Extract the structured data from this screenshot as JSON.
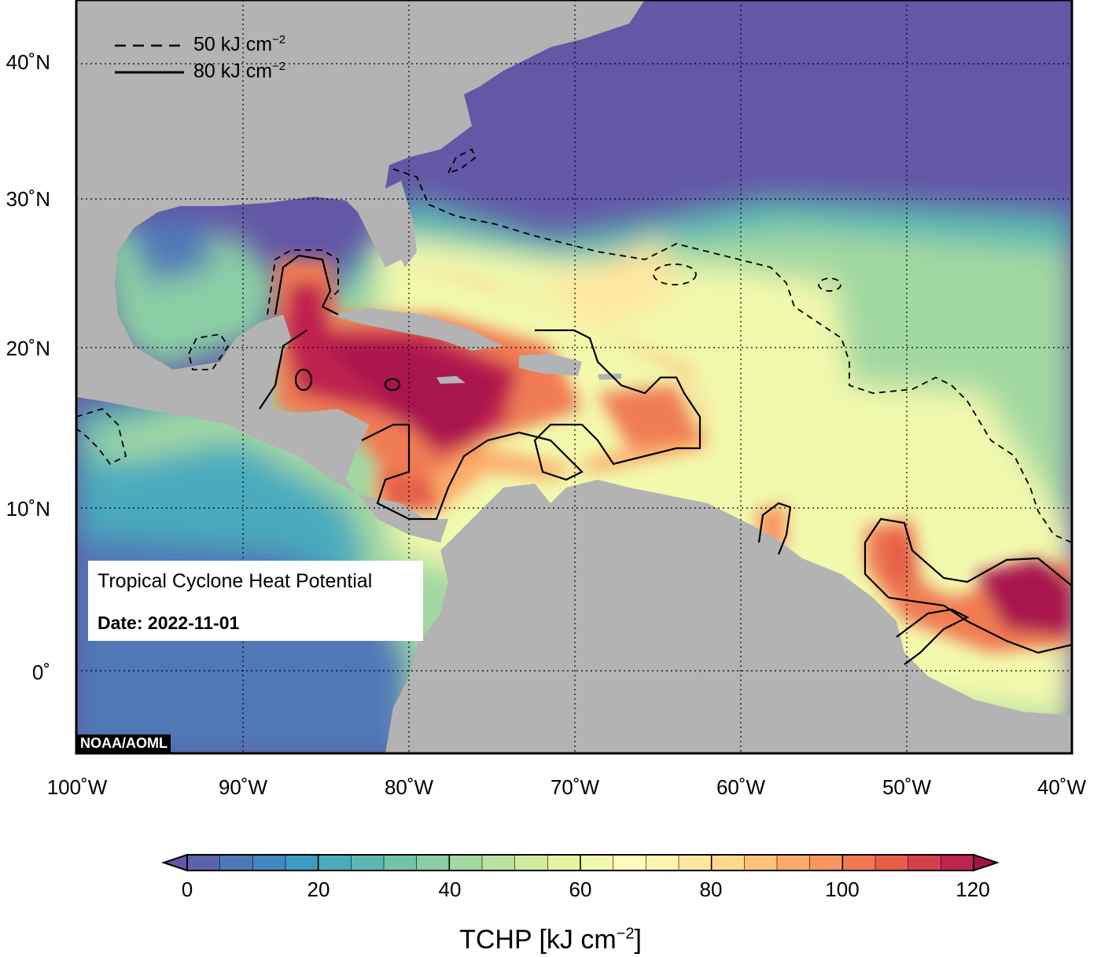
{
  "map": {
    "title": "Tropical Cyclone Heat Potential",
    "date": "Date: 2022-11-01",
    "credit": "NOAA/AOML",
    "lat_labels": [
      "40˚N",
      "30˚N",
      "20˚N",
      "10˚N",
      "0˚"
    ],
    "lon_labels": [
      "100˚W",
      "90˚W",
      "80˚W",
      "70˚W",
      "60˚W",
      "50˚W",
      "40˚W"
    ],
    "legend": {
      "dashed_label": "50 kJ cm",
      "solid_label": "80 kJ cm",
      "exponent": "−2"
    },
    "extent": {
      "lon": [
        -100,
        -40
      ],
      "lat": [
        -5,
        45
      ]
    },
    "colors": {
      "land": "#b3b3b3",
      "ocean_low": "#6357a6",
      "ocean_high": "#a8134d"
    }
  },
  "colorbar": {
    "title": "TCHP [kJ cm",
    "title_exponent": "−2",
    "title_close": "]",
    "ticks": [
      "0",
      "20",
      "40",
      "60",
      "80",
      "100",
      "120"
    ],
    "range": [
      0,
      120
    ],
    "step": 5,
    "colors": [
      "#6357a6",
      "#5b63ab",
      "#4f79b6",
      "#4288bf",
      "#3e9ac0",
      "#4aabbd",
      "#5bb8b1",
      "#71c4a6",
      "#8acfa4",
      "#a2d8a1",
      "#bbe3a0",
      "#d1ec9f",
      "#e4f4a0",
      "#f2f9ad",
      "#fbfbbc",
      "#fef5b2",
      "#fee8a0",
      "#fed88c",
      "#fdc479",
      "#fcac6a",
      "#f89560",
      "#f07b53",
      "#e65e4a",
      "#d5404e",
      "#c02450",
      "#a8134d"
    ]
  }
}
